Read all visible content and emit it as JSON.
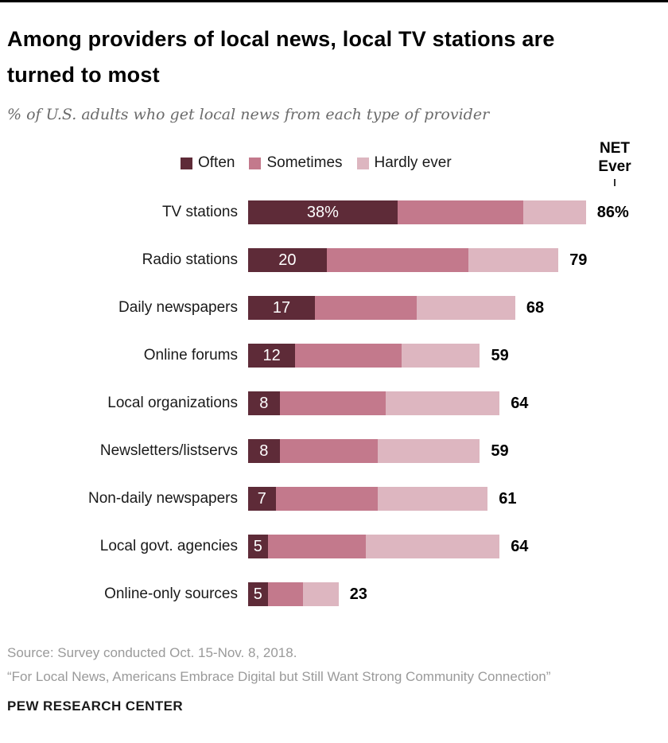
{
  "header": {
    "title": "Among providers of local news, local TV stations are turned to most",
    "subtitle": "% of U.S. adults who get local news from each type of provider"
  },
  "net_header": {
    "line1": "NET",
    "line2": "Ever"
  },
  "chart_data": {
    "type": "bar",
    "stacked": true,
    "orientation": "horizontal",
    "title": "Among providers of local news, local TV stations are turned to most",
    "subtitle": "% of U.S. adults who get local news from each type of provider",
    "legend": [
      "Often",
      "Sometimes",
      "Hardly ever"
    ],
    "legend_position": "top",
    "net_label": "NET Ever",
    "categories": [
      "TV stations",
      "Radio stations",
      "Daily newspapers",
      "Online forums",
      "Local organizations",
      "Newsletters/listservs",
      "Non-daily newspapers",
      "Local govt. agencies",
      "Online-only sources"
    ],
    "series": [
      {
        "name": "Often",
        "values": [
          38,
          20,
          17,
          12,
          8,
          8,
          7,
          5,
          5
        ]
      },
      {
        "name": "Sometimes",
        "values": [
          32,
          36,
          26,
          27,
          27,
          25,
          26,
          25,
          9
        ]
      },
      {
        "name": "Hardly ever",
        "values": [
          16,
          23,
          25,
          20,
          29,
          26,
          28,
          34,
          9
        ]
      }
    ],
    "net_values": [
      86,
      79,
      68,
      59,
      64,
      59,
      61,
      64,
      23
    ],
    "bar_labels": [
      "38%",
      "20",
      "17",
      "12",
      "8",
      "8",
      "7",
      "5",
      "5"
    ],
    "net_labels": [
      "86%",
      "79",
      "68",
      "59",
      "64",
      "59",
      "61",
      "64",
      "23"
    ],
    "xlim": [
      0,
      100
    ],
    "grid": false,
    "segment_colors": [
      "#5e2b38",
      "#c3798c",
      "#ddb6c0"
    ]
  },
  "footer": {
    "source": "Source: Survey conducted Oct. 15-Nov. 8, 2018.",
    "quote": "“For Local News, Americans Embrace Digital but Still Want Strong Community Connection”",
    "brand": "PEW RESEARCH CENTER"
  }
}
